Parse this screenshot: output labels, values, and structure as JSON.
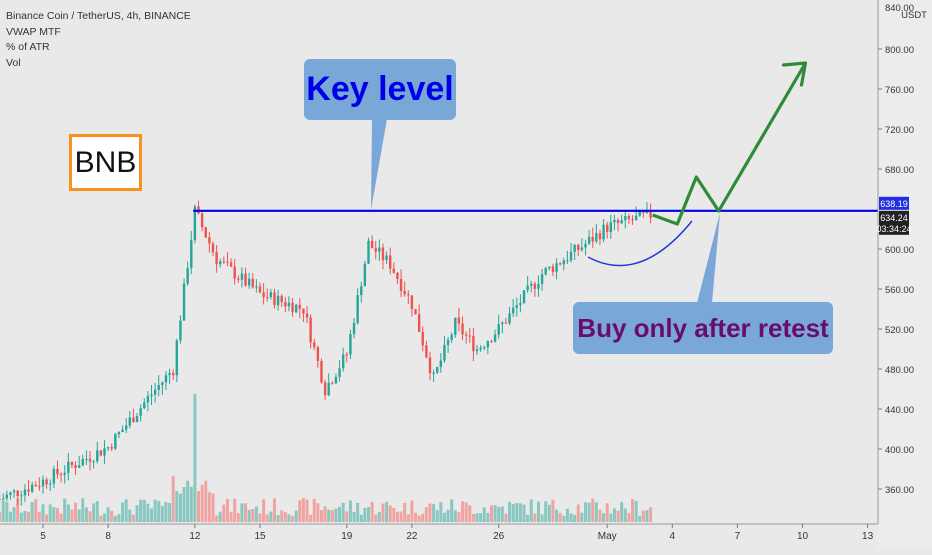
{
  "header": {
    "symbol_line": "Binance Coin / TetherUS, 4h, BINANCE",
    "indicators": [
      "VWAP MTF",
      "% of ATR",
      "Vol"
    ]
  },
  "badge": {
    "text": "BNB"
  },
  "annotations": {
    "key_level": "Key level",
    "buy_note": "Buy only after retest"
  },
  "price_axis": {
    "currency": "USDT",
    "ticks": [
      "800.00",
      "760.00",
      "720.00",
      "680.00",
      "600.00",
      "560.00",
      "520.00",
      "480.00",
      "440.00",
      "400.00",
      "360.00"
    ],
    "top_tick_partial": "840.00",
    "key_level_label": "638.19",
    "last_price_label": "634.24",
    "countdown": "03:34:24"
  },
  "time_axis": {
    "ticks": [
      "5",
      "8",
      "12",
      "15",
      "19",
      "22",
      "26",
      "May",
      "4",
      "7",
      "10",
      "13"
    ]
  },
  "colors": {
    "background": "#e9e9e9",
    "bull": "#26a69a",
    "bear": "#ef5350",
    "volume_bull": "#7dc4bd",
    "volume_bear": "#f19c9a",
    "key_level_line": "#0000e8",
    "projection_arrow": "#2e8b3a",
    "curve": "#1a3fd0",
    "callout_fill": "#79a8d8",
    "badge_border": "#f7931a"
  },
  "chart_data": {
    "type": "candlestick",
    "symbol": "BNB/USDT",
    "interval": "4h",
    "ylim": [
      320,
      840
    ],
    "horizontal_levels": [
      {
        "price": 638.19
      }
    ],
    "last_price": 634.24,
    "x_ticks": [
      "5",
      "8",
      "12",
      "15",
      "19",
      "22",
      "26",
      "May",
      "4",
      "7",
      "10",
      "13"
    ],
    "close_path": [
      {
        "date": "Apr 3",
        "close": 350
      },
      {
        "date": "Apr 5",
        "close": 368
      },
      {
        "date": "Apr 8",
        "close": 402
      },
      {
        "date": "Apr 10",
        "close": 455
      },
      {
        "date": "Apr 11",
        "close": 480
      },
      {
        "date": "Apr 12",
        "close": 638
      },
      {
        "date": "Apr 13",
        "close": 590
      },
      {
        "date": "Apr 15",
        "close": 555
      },
      {
        "date": "Apr 17",
        "close": 540
      },
      {
        "date": "Apr 18",
        "close": 460
      },
      {
        "date": "Apr 19",
        "close": 495
      },
      {
        "date": "Apr 20",
        "close": 605
      },
      {
        "date": "Apr 21",
        "close": 585
      },
      {
        "date": "Apr 22",
        "close": 545
      },
      {
        "date": "Apr 23",
        "close": 470
      },
      {
        "date": "Apr 24",
        "close": 525
      },
      {
        "date": "Apr 25",
        "close": 500
      },
      {
        "date": "Apr 26",
        "close": 520
      },
      {
        "date": "Apr 28",
        "close": 575
      },
      {
        "date": "Apr 30",
        "close": 605
      },
      {
        "date": "May 1",
        "close": 622
      },
      {
        "date": "May 2",
        "close": 628
      },
      {
        "date": "May 3",
        "close": 634
      }
    ],
    "projection": [
      {
        "date": "May 3",
        "price": 634
      },
      {
        "date": "May 4",
        "price": 625
      },
      {
        "date": "May 4",
        "price": 672
      },
      {
        "date": "May 6",
        "price": 638
      },
      {
        "date": "May 10",
        "price": 786
      }
    ],
    "volume_spike_date": "Apr 12"
  }
}
